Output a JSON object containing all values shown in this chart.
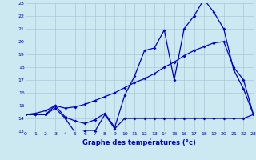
{
  "title": "Graphe des températures (°c)",
  "bg_color": "#cce8f0",
  "line_color": "#0000cc",
  "grid_color": "#aac8d8",
  "xmin": 0,
  "xmax": 23,
  "ymin": 13,
  "ymax": 23,
  "line1_x": [
    0,
    1,
    2,
    3,
    4,
    5,
    6,
    7,
    8,
    9,
    10,
    11,
    12,
    13,
    14,
    15,
    16,
    17,
    18,
    19,
    20,
    21,
    22,
    23
  ],
  "line1_y": [
    14.3,
    14.3,
    14.3,
    14.8,
    14.0,
    12.9,
    13.0,
    13.0,
    14.3,
    13.2,
    14.0,
    14.0,
    14.0,
    14.0,
    14.0,
    14.0,
    14.0,
    14.0,
    14.0,
    14.0,
    14.0,
    14.0,
    14.0,
    14.3
  ],
  "line2_x": [
    0,
    1,
    2,
    3,
    4,
    5,
    6,
    7,
    8,
    9,
    10,
    11,
    12,
    13,
    14,
    15,
    16,
    17,
    18,
    19,
    20,
    21,
    22,
    23
  ],
  "line2_y": [
    14.3,
    14.3,
    14.3,
    15.0,
    14.1,
    13.8,
    13.6,
    13.9,
    14.4,
    13.3,
    15.8,
    17.3,
    19.3,
    19.5,
    20.9,
    17.0,
    21.0,
    22.0,
    23.3,
    22.3,
    21.0,
    17.8,
    16.3,
    14.3
  ],
  "line3_x": [
    0,
    1,
    2,
    3,
    4,
    5,
    6,
    7,
    8,
    9,
    10,
    11,
    12,
    13,
    14,
    15,
    16,
    17,
    18,
    19,
    20,
    21,
    22,
    23
  ],
  "line3_y": [
    14.3,
    14.4,
    14.6,
    15.0,
    14.8,
    14.9,
    15.1,
    15.4,
    15.7,
    16.0,
    16.4,
    16.8,
    17.1,
    17.5,
    18.0,
    18.4,
    18.9,
    19.3,
    19.6,
    19.9,
    20.0,
    18.0,
    17.0,
    14.3
  ]
}
